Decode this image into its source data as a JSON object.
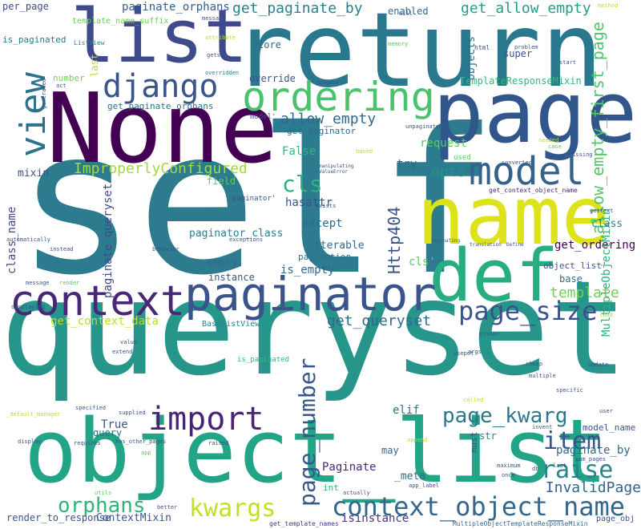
{
  "words": [
    {
      "text": "self",
      "color": "#2c7b8e"
    },
    {
      "text": "queryset",
      "color": "#26958a"
    },
    {
      "text": "object_list",
      "color": "#21a586"
    },
    {
      "text": "return",
      "color": "#2a788e"
    },
    {
      "text": "None",
      "color": "#440154"
    },
    {
      "text": "page",
      "color": "#31568c"
    },
    {
      "text": "name",
      "color": "#dde318"
    },
    {
      "text": "list",
      "color": "#3e4a89"
    },
    {
      "text": "def",
      "color": "#27ad81"
    },
    {
      "text": "paginator",
      "color": "#3a538b"
    },
    {
      "text": "context",
      "color": "#482777"
    },
    {
      "text": "ordering",
      "color": "#4ac26d"
    },
    {
      "text": "model",
      "color": "#33638d"
    },
    {
      "text": "django",
      "color": "#3a548c"
    },
    {
      "text": "view",
      "color": "#2c728e"
    },
    {
      "text": "context_object_name",
      "color": "#31688e"
    },
    {
      "text": "import",
      "color": "#482475"
    },
    {
      "text": "page_number",
      "color": "#38588c"
    },
    {
      "text": "page_size",
      "color": "#3b528b"
    },
    {
      "text": "page_kwarg",
      "color": "#2a788e"
    },
    {
      "text": "kwargs",
      "color": "#c2df23"
    },
    {
      "text": "orphans",
      "color": "#2fb47c"
    },
    {
      "text": "raise",
      "color": "#25848e"
    },
    {
      "text": "item",
      "color": "#3b528b"
    },
    {
      "text": "template",
      "color": "#73d055"
    },
    {
      "text": "allow_empty_first_page",
      "color": "#52c569"
    },
    {
      "text": "get_allow_empty",
      "color": "#1f9e89"
    },
    {
      "text": "get_paginate_by",
      "color": "#26818e"
    },
    {
      "text": "allow_empty",
      "color": "#31688e"
    },
    {
      "text": "cls",
      "color": "#2db27d"
    },
    {
      "text": "opts",
      "color": "#21918c"
    },
    {
      "text": "ImproperlyConfigured",
      "color": "#a0da39"
    },
    {
      "text": "Http404",
      "color": "#3b528b"
    },
    {
      "text": "paginate_orphans",
      "color": "#355f8d"
    },
    {
      "text": "get_queryset",
      "color": "#31688e"
    },
    {
      "text": "get_context_data",
      "color": "#b5de2b"
    },
    {
      "text": "class_name",
      "color": "#3e4989"
    },
    {
      "text": "paginate_queryset",
      "color": "#3e4a89"
    },
    {
      "text": "is_paginated",
      "color": "#2a788e"
    },
    {
      "text": "InvalidPage",
      "color": "#33638d"
    },
    {
      "text": "paginate_by",
      "color": "#30698e"
    },
    {
      "text": "template_name_suffix",
      "color": "#6ccd5a"
    },
    {
      "text": "TemplateResponseMixin",
      "color": "#35b779"
    },
    {
      "text": "get_paginate_orphans",
      "color": "#2c728e"
    },
    {
      "text": "get_ordering",
      "color": "#440154"
    },
    {
      "text": "MultipleObjectMixin",
      "color": "#2db27d"
    },
    {
      "text": "ContextMixin",
      "color": "#39568c"
    },
    {
      "text": "render_to_response",
      "color": "#3b528b"
    },
    {
      "text": "isinstance",
      "color": "#46337e"
    },
    {
      "text": "Paginate",
      "color": "#482878"
    },
    {
      "text": "per_page",
      "color": "#3e4989"
    },
    {
      "text": "enabled",
      "color": "#31688e"
    },
    {
      "text": "hasattr",
      "color": "#3b528b"
    },
    {
      "text": "except",
      "color": "#31688e"
    },
    {
      "text": "iterable",
      "color": "#31688e"
    },
    {
      "text": "pagination",
      "color": "#2d708e"
    },
    {
      "text": "is_empty",
      "color": "#31688e"
    },
    {
      "text": "instance",
      "color": "#39568c"
    },
    {
      "text": "empty",
      "color": "#31688e"
    },
    {
      "text": "paginator_class",
      "color": "#26828e"
    },
    {
      "text": "field",
      "color": "#5ec962"
    },
    {
      "text": "mixin",
      "color": "#3b528b"
    },
    {
      "text": "False",
      "color": "#35b779"
    },
    {
      "text": "True",
      "color": "#3b528b"
    },
    {
      "text": "query",
      "color": "#2c728e"
    },
    {
      "text": "elif",
      "color": "#2a788e"
    },
    {
      "text": "may",
      "color": "#31688e"
    },
    {
      "text": "str",
      "color": "#26828e"
    },
    {
      "text": "must",
      "color": "#3b528b"
    },
    {
      "text": "int",
      "color": "#35b779"
    },
    {
      "text": "core",
      "color": "#31688e"
    },
    {
      "text": "override",
      "color": "#3b528b"
    },
    {
      "text": "request",
      "color": "#5ec962"
    },
    {
      "text": "try",
      "color": "#31688e"
    },
    {
      "text": "base",
      "color": "#31688e"
    },
    {
      "text": "class",
      "color": "#26828e"
    },
    {
      "text": "number",
      "color": "#73d055"
    },
    {
      "text": "objects",
      "color": "#31688e"
    },
    {
      "text": "get_paginator",
      "color": "#31688e"
    },
    {
      "text": "model_name",
      "color": "#3b528b"
    },
    {
      "text": "BaseListView",
      "color": "#26828e"
    },
    {
      "text": "get_context_object_name",
      "color": "#482475"
    },
    {
      "text": "is_paginated",
      "color": "#35b779"
    },
    {
      "text": "ListView",
      "color": "#26828e"
    },
    {
      "text": "last",
      "color": "#b5de2b"
    },
    {
      "text": "super",
      "color": "#3b528b"
    },
    {
      "text": "html",
      "color": "#3b528b"
    },
    {
      "text": "page_obj",
      "color": "#3b528b"
    },
    {
      "text": "MultipleObjectTemplateResponseMixin",
      "color": "#31688e"
    },
    {
      "text": "get_template_names",
      "color": "#46337e"
    },
    {
      "text": "has_other_pages",
      "color": "#3b528b"
    },
    {
      "text": "supplied",
      "color": "#3b528b"
    },
    {
      "text": "specified",
      "color": "#3b528b"
    },
    {
      "text": "requires",
      "color": "#3b528b"
    },
    {
      "text": "display",
      "color": "#3b528b"
    },
    {
      "text": "automatically",
      "color": "#3b528b"
    },
    {
      "text": "instead",
      "color": "#3b528b"
    },
    {
      "text": "behavior",
      "color": "#3b528b"
    },
    {
      "text": "displaying",
      "color": "#3b528b"
    },
    {
      "text": "translation",
      "color": "#3b528b"
    },
    {
      "text": "paginating",
      "color": "#3b528b"
    },
    {
      "text": "manipulating",
      "color": "#3b528b"
    },
    {
      "text": "ValueError",
      "color": "#3b528b"
    },
    {
      "text": "exceptions",
      "color": "#3b528b"
    },
    {
      "text": "invent",
      "color": "#3b528b"
    },
    {
      "text": "maximum",
      "color": "#3b528b"
    },
    {
      "text": "actually",
      "color": "#3b528b"
    },
    {
      "text": "app_label",
      "color": "#3b528b"
    },
    {
      "text": "called",
      "color": "#b5de2b"
    },
    {
      "text": "used",
      "color": "#5ec962"
    },
    {
      "text": "start",
      "color": "#3b528b"
    },
    {
      "text": "problem",
      "color": "#3b528b"
    },
    {
      "text": "method",
      "color": "#b5de2b"
    },
    {
      "text": "memory",
      "color": "#5ec962"
    },
    {
      "text": "will",
      "color": "#3b528b"
    },
    {
      "text": "message",
      "color": "#3b528b"
    },
    {
      "text": "attribute",
      "color": "#b5de2b"
    },
    {
      "text": "gets",
      "color": "#3b528b"
    },
    {
      "text": "overridden",
      "color": "#26828e"
    },
    {
      "text": "generic",
      "color": "#3b528b"
    },
    {
      "text": "based",
      "color": "#b5de2b"
    },
    {
      "text": "converted",
      "color": "#3b528b"
    },
    {
      "text": "needed",
      "color": "#b5de2b"
    },
    {
      "text": "case",
      "color": "#5ec962"
    },
    {
      "text": "multiple",
      "color": "#3b528b"
    },
    {
      "text": "cheap",
      "color": "#3b528b"
    },
    {
      "text": "update",
      "color": "#3b528b"
    },
    {
      "text": "specific",
      "color": "#3b528b"
    },
    {
      "text": "user",
      "color": "#3b528b"
    },
    {
      "text": "num_pages",
      "color": "#3b528b"
    },
    {
      "text": "once",
      "color": "#3b528b"
    },
    {
      "text": "append",
      "color": "#b5de2b"
    },
    {
      "text": "render",
      "color": "#5ec962"
    },
    {
      "text": "message",
      "color": "#3b528b"
    },
    {
      "text": "value",
      "color": "#3b528b"
    },
    {
      "text": "extend",
      "color": "#3b528b"
    },
    {
      "text": "either",
      "color": "#3b528b"
    },
    {
      "text": "load",
      "color": "#b5de2b"
    },
    {
      "text": "args",
      "color": "#3b528b"
    },
    {
      "text": "missing",
      "color": "#3b528b"
    },
    {
      "text": "_meta",
      "color": "#31688e"
    },
    {
      "text": "_default_manager",
      "color": "#b5de2b"
    },
    {
      "text": "utils",
      "color": "#5ec962"
    },
    {
      "text": "better",
      "color": "#3b528b"
    },
    {
      "text": "db",
      "color": "#3b528b"
    },
    {
      "text": "last",
      "color": "#3b528b"
    },
    {
      "text": "unpaginated",
      "color": "#3b528b"
    },
    {
      "text": "exists",
      "color": "#3b528b"
    },
    {
      "text": "gettext",
      "color": "#3b528b"
    },
    {
      "text": "raised",
      "color": "#3b528b"
    },
    {
      "text": "usepot",
      "color": "#3b528b"
    },
    {
      "text": "app",
      "color": "#5ec962"
    },
    {
      "text": "act",
      "color": "#3b528b"
    },
    {
      "text": "generated",
      "color": "#3b528b"
    },
    {
      "text": "object_list'",
      "color": "#3b528b"
    },
    {
      "text": "model'",
      "color": "#3b528b"
    },
    {
      "text": "paginator'",
      "color": "#3b528b"
    },
    {
      "text": "cls'",
      "color": "#5ec962"
    },
    {
      "text": "Define",
      "color": "#3b528b"
    }
  ]
}
